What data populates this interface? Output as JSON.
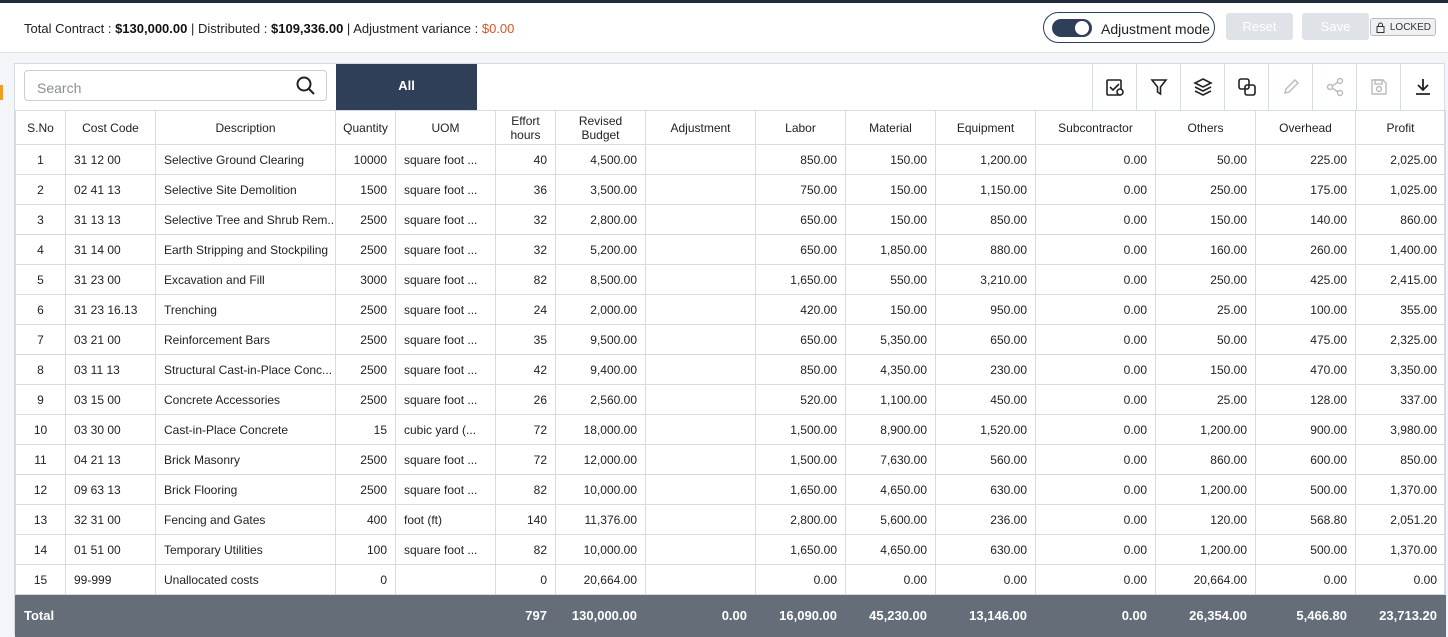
{
  "header": {
    "total_contract_label": "Total Contract :",
    "total_contract": "$130,000.00",
    "separator": "|",
    "distributed_label": "Distributed :",
    "distributed": "$109,336.00",
    "variance_label": "Adjustment variance :",
    "variance": "$0.00",
    "mode_label": "Adjustment mode",
    "reset": "Reset",
    "save": "Save",
    "locked": "LOCKED"
  },
  "toolbar": {
    "search_placeholder": "Search",
    "tab": "All"
  },
  "table": {
    "columns": [
      "S.No",
      "Cost Code",
      "Description",
      "Quantity",
      "UOM",
      "Effort hours",
      "Revised Budget",
      "Adjustment",
      "Labor",
      "Material",
      "Equipment",
      "Subcontractor",
      "Others",
      "Overhead",
      "Profit"
    ],
    "rows": [
      [
        "1",
        "31 12 00",
        "Selective Ground Clearing",
        "10000",
        "square foot ...",
        "40",
        "4,500.00",
        null,
        "850.00",
        "150.00",
        "1,200.00",
        "0.00",
        "50.00",
        "225.00",
        "2,025.00"
      ],
      [
        "2",
        "02 41 13",
        "Selective Site Demolition",
        "1500",
        "square foot ...",
        "36",
        "3,500.00",
        null,
        "750.00",
        "150.00",
        "1,150.00",
        "0.00",
        "250.00",
        "175.00",
        "1,025.00"
      ],
      [
        "3",
        "31 13 13",
        "Selective Tree and Shrub Rem...",
        "2500",
        "square foot ...",
        "32",
        "2,800.00",
        null,
        "650.00",
        "150.00",
        "850.00",
        "0.00",
        "150.00",
        "140.00",
        "860.00"
      ],
      [
        "4",
        "31 14 00",
        "Earth Stripping and Stockpiling",
        "2500",
        "square foot ...",
        "32",
        "5,200.00",
        null,
        "650.00",
        "1,850.00",
        "880.00",
        "0.00",
        "160.00",
        "260.00",
        "1,400.00"
      ],
      [
        "5",
        "31 23 00",
        "Excavation and Fill",
        "3000",
        "square foot ...",
        "82",
        "8,500.00",
        null,
        "1,650.00",
        "550.00",
        "3,210.00",
        "0.00",
        "250.00",
        "425.00",
        "2,415.00"
      ],
      [
        "6",
        "31 23 16.13",
        "Trenching",
        "2500",
        "square foot ...",
        "24",
        "2,000.00",
        null,
        "420.00",
        "150.00",
        "950.00",
        "0.00",
        "25.00",
        "100.00",
        "355.00"
      ],
      [
        "7",
        "03 21 00",
        "Reinforcement Bars",
        "2500",
        "square foot ...",
        "35",
        "9,500.00",
        null,
        "650.00",
        "5,350.00",
        "650.00",
        "0.00",
        "50.00",
        "475.00",
        "2,325.00"
      ],
      [
        "8",
        "03 11 13",
        "Structural Cast-in-Place Conc...",
        "2500",
        "square foot ...",
        "42",
        "9,400.00",
        null,
        "850.00",
        "4,350.00",
        "230.00",
        "0.00",
        "150.00",
        "470.00",
        "3,350.00"
      ],
      [
        "9",
        "03 15 00",
        "Concrete Accessories",
        "2500",
        "square foot ...",
        "26",
        "2,560.00",
        null,
        "520.00",
        "1,100.00",
        "450.00",
        "0.00",
        "25.00",
        "128.00",
        "337.00"
      ],
      [
        "10",
        "03 30 00",
        "Cast-in-Place Concrete",
        "15",
        "cubic yard (...",
        "72",
        "18,000.00",
        null,
        "1,500.00",
        "8,900.00",
        "1,520.00",
        "0.00",
        "1,200.00",
        "900.00",
        "3,980.00"
      ],
      [
        "11",
        "04 21 13",
        "Brick Masonry",
        "2500",
        "square foot ...",
        "72",
        "12,000.00",
        null,
        "1,500.00",
        "7,630.00",
        "560.00",
        "0.00",
        "860.00",
        "600.00",
        "850.00"
      ],
      [
        "12",
        "09 63 13",
        "Brick Flooring",
        "2500",
        "square foot ...",
        "82",
        "10,000.00",
        null,
        "1,650.00",
        "4,650.00",
        "630.00",
        "0.00",
        "1,200.00",
        "500.00",
        "1,370.00"
      ],
      [
        "13",
        "32 31 00",
        "Fencing and Gates",
        "400",
        "foot (ft)",
        "140",
        "11,376.00",
        null,
        "2,800.00",
        "5,600.00",
        "236.00",
        "0.00",
        "120.00",
        "568.80",
        "2,051.20"
      ],
      [
        "14",
        "01 51 00",
        "Temporary Utilities",
        "100",
        "square foot ...",
        "82",
        "10,000.00",
        null,
        "1,650.00",
        "4,650.00",
        "630.00",
        "0.00",
        "1,200.00",
        "500.00",
        "1,370.00"
      ],
      [
        "15",
        "99-999",
        "Unallocated costs",
        "0",
        null,
        "0",
        "20,664.00",
        null,
        "0.00",
        "0.00",
        "0.00",
        "0.00",
        "20,664.00",
        "0.00",
        "0.00"
      ]
    ],
    "footer": [
      "Total",
      null,
      null,
      null,
      null,
      "797",
      "130,000.00",
      "0.00",
      "16,090.00",
      "45,230.00",
      "13,146.00",
      "0.00",
      "26,354.00",
      "5,466.80",
      "23,713.20"
    ]
  }
}
